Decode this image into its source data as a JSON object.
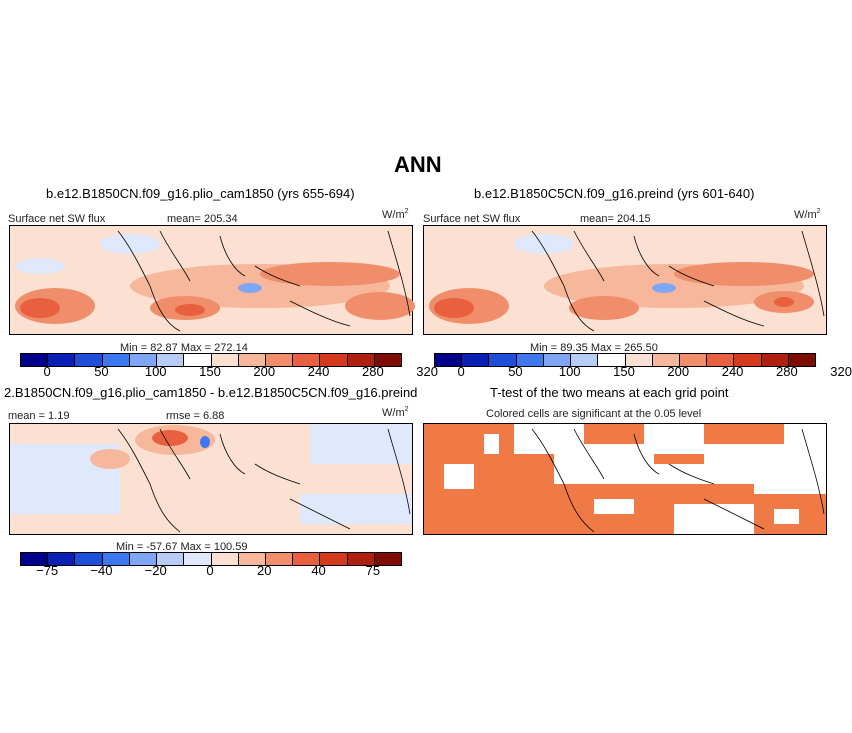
{
  "main_title": "ANN",
  "panels": {
    "p1": {
      "title": "b.e12.B1850CN.f09_g16.plio_cam1850 (yrs 655-694)",
      "variable": "Surface net SW flux",
      "mean_label": "mean= 205.34",
      "units": "W/m",
      "units_exp": "2",
      "minmax": "Min =  82.87 Max = 272.14"
    },
    "p2": {
      "title": "b.e12.B1850C5CN.f09_g16.preind (yrs 601-640)",
      "variable": "Surface net SW flux",
      "mean_label": "mean= 204.15",
      "units": "W/m",
      "units_exp": "2",
      "minmax": "Min =  89.35 Max = 265.50"
    },
    "p3": {
      "title": "2.B1850CN.f09_g16.plio_cam1850 - b.e12.B1850C5CN.f09_g16.preind",
      "mean_label": "mean =  1.19",
      "rmse_label": "rmse =  6.88",
      "units": "W/m",
      "units_exp": "2",
      "minmax": "Min = -57.67 Max = 100.59"
    },
    "p4": {
      "title": "T-test of the two means at each grid point",
      "subtitle": "Colored cells are significant at the 0.05 level"
    }
  },
  "colors": {
    "seq": [
      "#00008b",
      "#0a1fb3",
      "#1e4fd8",
      "#3e78f0",
      "#7fa6f5",
      "#b7cdf8",
      "#ffffff",
      "#fce0d2",
      "#f7b79b",
      "#f08d6a",
      "#e8603e",
      "#d63a1c",
      "#b0200f",
      "#7d0d05"
    ],
    "div": [
      "#00008b",
      "#0a1fb3",
      "#1e4fd8",
      "#3e78f0",
      "#7fa6f5",
      "#b7cdf8",
      "#dfe9fb",
      "#fce0d2",
      "#f7b79b",
      "#f08d6a",
      "#e8603e",
      "#d63a1c",
      "#b0200f",
      "#7d0d05"
    ],
    "sig": "#f07a45"
  },
  "chart_data": [
    {
      "type": "heatmap",
      "title": "b.e12.B1850CN.f09_g16.plio_cam1850 (yrs 655-694)",
      "variable": "Surface net SW flux",
      "units": "W/m2",
      "mean": 205.34,
      "min": 82.87,
      "max": 272.14,
      "colorbar_labels": [
        "0",
        "50",
        "100",
        "150",
        "200",
        "240",
        "280",
        "320"
      ],
      "colorbar_values": [
        0,
        50,
        100,
        150,
        200,
        240,
        280,
        320
      ],
      "lat_range": [
        -30,
        30
      ],
      "lon_range": [
        -60,
        300
      ]
    },
    {
      "type": "heatmap",
      "title": "b.e12.B1850C5CN.f09_g16.preind (yrs 601-640)",
      "variable": "Surface net SW flux",
      "units": "W/m2",
      "mean": 204.15,
      "min": 89.35,
      "max": 265.5,
      "colorbar_labels": [
        "0",
        "50",
        "100",
        "150",
        "200",
        "240",
        "280",
        "320"
      ],
      "colorbar_values": [
        0,
        50,
        100,
        150,
        200,
        240,
        280,
        320
      ],
      "lat_range": [
        -30,
        30
      ],
      "lon_range": [
        -60,
        300
      ]
    },
    {
      "type": "heatmap",
      "title": "2.B1850CN.f09_g16.plio_cam1850 - b.e12.B1850C5CN.f09_g16.preind",
      "units": "W/m2",
      "mean": 1.19,
      "rmse": 6.88,
      "min": -57.67,
      "max": 100.59,
      "colorbar_labels": [
        "−75",
        "−40",
        "−20",
        "0",
        "20",
        "40",
        "75"
      ],
      "colorbar_values": [
        -75,
        -40,
        -20,
        0,
        20,
        40,
        75
      ],
      "lat_range": [
        -30,
        30
      ],
      "lon_range": [
        -60,
        300
      ]
    },
    {
      "type": "heatmap",
      "title": "T-test of the two means at each grid point",
      "subtitle": "Colored cells are significant at the 0.05 level",
      "significance_level": 0.05,
      "lat_range": [
        -30,
        30
      ],
      "lon_range": [
        -60,
        300
      ]
    }
  ]
}
